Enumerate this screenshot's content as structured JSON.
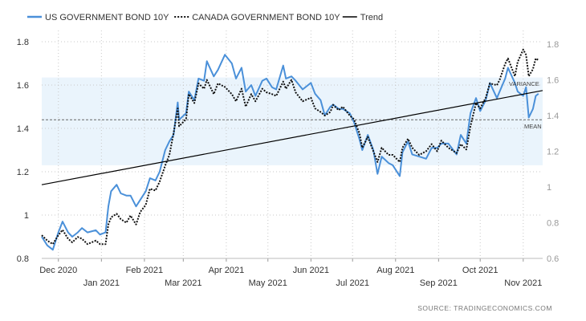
{
  "colors": {
    "us": "#4a90d9",
    "canada": "#111111",
    "trend": "#000000",
    "band": "#eaf4fc",
    "grid": "#c8c8c8",
    "text": "#333333",
    "right_axis_text": "#9a9a9a"
  },
  "legend": [
    {
      "name": "US GOVERNMENT BOND 10Y",
      "style": "solid-blue"
    },
    {
      "name": "CANADA GOVERNMENT BOND 10Y",
      "style": "dotted-black"
    },
    {
      "name": "Trend",
      "style": "solid-black"
    }
  ],
  "source": "SOURCE:  TRADINGECONOMICS.COM",
  "annotations": {
    "variance": "VARIANCE",
    "mean": "MEAN"
  },
  "chart_data": {
    "type": "line",
    "title": "",
    "legend_position": "top-left",
    "grid": {
      "horizontal": true,
      "vertical": true,
      "style": "dotted"
    },
    "x_tick_labels": [
      "Dec 2020",
      "Jan 2021",
      "Feb 2021",
      "Mar 2021",
      "Apr 2021",
      "May 2021",
      "Jun 2021",
      "Jul 2021",
      "Aug 2021",
      "Sep 2021",
      "Oct 2021",
      "Nov 2021"
    ],
    "x_tick_dates": [
      "2020-12-01",
      "2021-01-01",
      "2021-02-01",
      "2021-03-01",
      "2021-04-01",
      "2021-05-01",
      "2021-06-01",
      "2021-07-01",
      "2021-08-01",
      "2021-09-01",
      "2021-10-01",
      "2021-11-01"
    ],
    "x_range": [
      "2020-11-19",
      "2021-11-15"
    ],
    "y_left": {
      "ticks": [
        "0.8",
        "1",
        "1.2",
        "1.4",
        "1.6",
        "1.8"
      ],
      "range": [
        0.8,
        1.85
      ]
    },
    "y_right": {
      "ticks": [
        "0.6",
        "0.8",
        "1",
        "1.2",
        "1.4",
        "1.6",
        "1.8"
      ],
      "range": [
        0.6,
        1.85
      ]
    },
    "band": {
      "axis": "left",
      "from": 1.23,
      "to": 1.635,
      "label": "VARIANCE"
    },
    "mean_line": {
      "axis": "left",
      "value": 1.44,
      "label": "MEAN"
    },
    "series": [
      {
        "name": "US GOVERNMENT BOND 10Y",
        "axis": "left",
        "points": [
          [
            "2020-11-19",
            0.9
          ],
          [
            "2020-11-23",
            0.86
          ],
          [
            "2020-11-27",
            0.84
          ],
          [
            "2020-12-01",
            0.92
          ],
          [
            "2020-12-04",
            0.97
          ],
          [
            "2020-12-08",
            0.92
          ],
          [
            "2020-12-11",
            0.9
          ],
          [
            "2020-12-15",
            0.92
          ],
          [
            "2020-12-18",
            0.94
          ],
          [
            "2020-12-22",
            0.92
          ],
          [
            "2020-12-28",
            0.93
          ],
          [
            "2020-12-31",
            0.91
          ],
          [
            "2021-01-04",
            0.92
          ],
          [
            "2021-01-06",
            1.04
          ],
          [
            "2021-01-08",
            1.11
          ],
          [
            "2021-01-12",
            1.14
          ],
          [
            "2021-01-15",
            1.1
          ],
          [
            "2021-01-19",
            1.09
          ],
          [
            "2021-01-22",
            1.09
          ],
          [
            "2021-01-26",
            1.04
          ],
          [
            "2021-01-29",
            1.07
          ],
          [
            "2021-02-02",
            1.11
          ],
          [
            "2021-02-05",
            1.17
          ],
          [
            "2021-02-09",
            1.16
          ],
          [
            "2021-02-12",
            1.2
          ],
          [
            "2021-02-16",
            1.3
          ],
          [
            "2021-02-19",
            1.34
          ],
          [
            "2021-02-22",
            1.37
          ],
          [
            "2021-02-25",
            1.52
          ],
          [
            "2021-02-26",
            1.44
          ],
          [
            "2021-03-03",
            1.47
          ],
          [
            "2021-03-05",
            1.57
          ],
          [
            "2021-03-09",
            1.53
          ],
          [
            "2021-03-12",
            1.63
          ],
          [
            "2021-03-16",
            1.62
          ],
          [
            "2021-03-18",
            1.71
          ],
          [
            "2021-03-23",
            1.64
          ],
          [
            "2021-03-26",
            1.67
          ],
          [
            "2021-03-31",
            1.74
          ],
          [
            "2021-04-05",
            1.7
          ],
          [
            "2021-04-08",
            1.63
          ],
          [
            "2021-04-12",
            1.68
          ],
          [
            "2021-04-15",
            1.57
          ],
          [
            "2021-04-19",
            1.6
          ],
          [
            "2021-04-22",
            1.55
          ],
          [
            "2021-04-27",
            1.62
          ],
          [
            "2021-04-30",
            1.63
          ],
          [
            "2021-05-04",
            1.59
          ],
          [
            "2021-05-07",
            1.58
          ],
          [
            "2021-05-12",
            1.69
          ],
          [
            "2021-05-14",
            1.63
          ],
          [
            "2021-05-18",
            1.64
          ],
          [
            "2021-05-21",
            1.62
          ],
          [
            "2021-05-26",
            1.58
          ],
          [
            "2021-06-01",
            1.61
          ],
          [
            "2021-06-04",
            1.56
          ],
          [
            "2021-06-08",
            1.53
          ],
          [
            "2021-06-11",
            1.46
          ],
          [
            "2021-06-15",
            1.5
          ],
          [
            "2021-06-17",
            1.51
          ],
          [
            "2021-06-21",
            1.49
          ],
          [
            "2021-06-24",
            1.49
          ],
          [
            "2021-06-29",
            1.47
          ],
          [
            "2021-07-02",
            1.43
          ],
          [
            "2021-07-06",
            1.35
          ],
          [
            "2021-07-08",
            1.3
          ],
          [
            "2021-07-12",
            1.37
          ],
          [
            "2021-07-16",
            1.3
          ],
          [
            "2021-07-19",
            1.19
          ],
          [
            "2021-07-22",
            1.27
          ],
          [
            "2021-07-27",
            1.24
          ],
          [
            "2021-07-30",
            1.23
          ],
          [
            "2021-08-04",
            1.18
          ],
          [
            "2021-08-06",
            1.29
          ],
          [
            "2021-08-10",
            1.34
          ],
          [
            "2021-08-13",
            1.28
          ],
          [
            "2021-08-18",
            1.27
          ],
          [
            "2021-08-23",
            1.26
          ],
          [
            "2021-08-27",
            1.31
          ],
          [
            "2021-08-31",
            1.31
          ],
          [
            "2021-09-03",
            1.33
          ],
          [
            "2021-09-08",
            1.33
          ],
          [
            "2021-09-14",
            1.28
          ],
          [
            "2021-09-17",
            1.37
          ],
          [
            "2021-09-21",
            1.33
          ],
          [
            "2021-09-24",
            1.47
          ],
          [
            "2021-09-28",
            1.54
          ],
          [
            "2021-10-01",
            1.48
          ],
          [
            "2021-10-05",
            1.53
          ],
          [
            "2021-10-08",
            1.61
          ],
          [
            "2021-10-13",
            1.54
          ],
          [
            "2021-10-15",
            1.57
          ],
          [
            "2021-10-19",
            1.63
          ],
          [
            "2021-10-21",
            1.68
          ],
          [
            "2021-10-26",
            1.61
          ],
          [
            "2021-10-28",
            1.57
          ],
          [
            "2021-11-01",
            1.55
          ],
          [
            "2021-11-03",
            1.59
          ],
          [
            "2021-11-05",
            1.45
          ],
          [
            "2021-11-08",
            1.49
          ],
          [
            "2021-11-10",
            1.55
          ],
          [
            "2021-11-12",
            1.56
          ]
        ]
      },
      {
        "name": "CANADA GOVERNMENT BOND 10Y",
        "axis": "right",
        "points": [
          [
            "2020-11-19",
            0.73
          ],
          [
            "2020-11-23",
            0.7
          ],
          [
            "2020-11-27",
            0.68
          ],
          [
            "2020-12-01",
            0.73
          ],
          [
            "2020-12-04",
            0.76
          ],
          [
            "2020-12-08",
            0.71
          ],
          [
            "2020-12-11",
            0.69
          ],
          [
            "2020-12-15",
            0.72
          ],
          [
            "2020-12-18",
            0.71
          ],
          [
            "2020-12-22",
            0.68
          ],
          [
            "2020-12-28",
            0.7
          ],
          [
            "2020-12-31",
            0.68
          ],
          [
            "2021-01-04",
            0.68
          ],
          [
            "2021-01-06",
            0.79
          ],
          [
            "2021-01-08",
            0.83
          ],
          [
            "2021-01-12",
            0.85
          ],
          [
            "2021-01-15",
            0.82
          ],
          [
            "2021-01-19",
            0.8
          ],
          [
            "2021-01-22",
            0.84
          ],
          [
            "2021-01-26",
            0.79
          ],
          [
            "2021-01-29",
            0.86
          ],
          [
            "2021-02-02",
            0.9
          ],
          [
            "2021-02-05",
            0.99
          ],
          [
            "2021-02-09",
            0.98
          ],
          [
            "2021-02-12",
            1.03
          ],
          [
            "2021-02-16",
            1.12
          ],
          [
            "2021-02-19",
            1.18
          ],
          [
            "2021-02-22",
            1.3
          ],
          [
            "2021-02-25",
            1.44
          ],
          [
            "2021-02-26",
            1.34
          ],
          [
            "2021-03-03",
            1.38
          ],
          [
            "2021-03-05",
            1.52
          ],
          [
            "2021-03-09",
            1.47
          ],
          [
            "2021-03-12",
            1.58
          ],
          [
            "2021-03-16",
            1.55
          ],
          [
            "2021-03-18",
            1.6
          ],
          [
            "2021-03-23",
            1.52
          ],
          [
            "2021-03-26",
            1.58
          ],
          [
            "2021-03-31",
            1.56
          ],
          [
            "2021-04-05",
            1.52
          ],
          [
            "2021-04-08",
            1.48
          ],
          [
            "2021-04-12",
            1.55
          ],
          [
            "2021-04-15",
            1.45
          ],
          [
            "2021-04-19",
            1.52
          ],
          [
            "2021-04-22",
            1.48
          ],
          [
            "2021-04-27",
            1.55
          ],
          [
            "2021-04-30",
            1.53
          ],
          [
            "2021-05-04",
            1.52
          ],
          [
            "2021-05-07",
            1.51
          ],
          [
            "2021-05-12",
            1.59
          ],
          [
            "2021-05-14",
            1.55
          ],
          [
            "2021-05-18",
            1.6
          ],
          [
            "2021-05-21",
            1.53
          ],
          [
            "2021-05-26",
            1.48
          ],
          [
            "2021-06-01",
            1.5
          ],
          [
            "2021-06-04",
            1.44
          ],
          [
            "2021-06-08",
            1.42
          ],
          [
            "2021-06-11",
            1.4
          ],
          [
            "2021-06-15",
            1.42
          ],
          [
            "2021-06-17",
            1.46
          ],
          [
            "2021-06-21",
            1.43
          ],
          [
            "2021-06-24",
            1.45
          ],
          [
            "2021-06-29",
            1.4
          ],
          [
            "2021-07-02",
            1.38
          ],
          [
            "2021-07-06",
            1.3
          ],
          [
            "2021-07-08",
            1.22
          ],
          [
            "2021-07-12",
            1.28
          ],
          [
            "2021-07-16",
            1.2
          ],
          [
            "2021-07-19",
            1.14
          ],
          [
            "2021-07-22",
            1.22
          ],
          [
            "2021-07-27",
            1.18
          ],
          [
            "2021-07-30",
            1.18
          ],
          [
            "2021-08-04",
            1.14
          ],
          [
            "2021-08-06",
            1.22
          ],
          [
            "2021-08-10",
            1.27
          ],
          [
            "2021-08-13",
            1.22
          ],
          [
            "2021-08-18",
            1.18
          ],
          [
            "2021-08-23",
            1.2
          ],
          [
            "2021-08-27",
            1.24
          ],
          [
            "2021-08-31",
            1.2
          ],
          [
            "2021-09-03",
            1.26
          ],
          [
            "2021-09-08",
            1.22
          ],
          [
            "2021-09-14",
            1.19
          ],
          [
            "2021-09-17",
            1.24
          ],
          [
            "2021-09-21",
            1.21
          ],
          [
            "2021-09-24",
            1.34
          ],
          [
            "2021-09-28",
            1.47
          ],
          [
            "2021-10-01",
            1.44
          ],
          [
            "2021-10-05",
            1.5
          ],
          [
            "2021-10-08",
            1.58
          ],
          [
            "2021-10-13",
            1.57
          ],
          [
            "2021-10-15",
            1.6
          ],
          [
            "2021-10-19",
            1.69
          ],
          [
            "2021-10-21",
            1.72
          ],
          [
            "2021-10-26",
            1.62
          ],
          [
            "2021-10-28",
            1.7
          ],
          [
            "2021-11-01",
            1.77
          ],
          [
            "2021-11-03",
            1.74
          ],
          [
            "2021-11-05",
            1.62
          ],
          [
            "2021-11-08",
            1.66
          ],
          [
            "2021-11-10",
            1.72
          ],
          [
            "2021-11-12",
            1.71
          ]
        ]
      },
      {
        "name": "Trend",
        "axis": "left",
        "points": [
          [
            "2020-11-19",
            1.14
          ],
          [
            "2021-11-15",
            1.575
          ]
        ]
      }
    ]
  }
}
